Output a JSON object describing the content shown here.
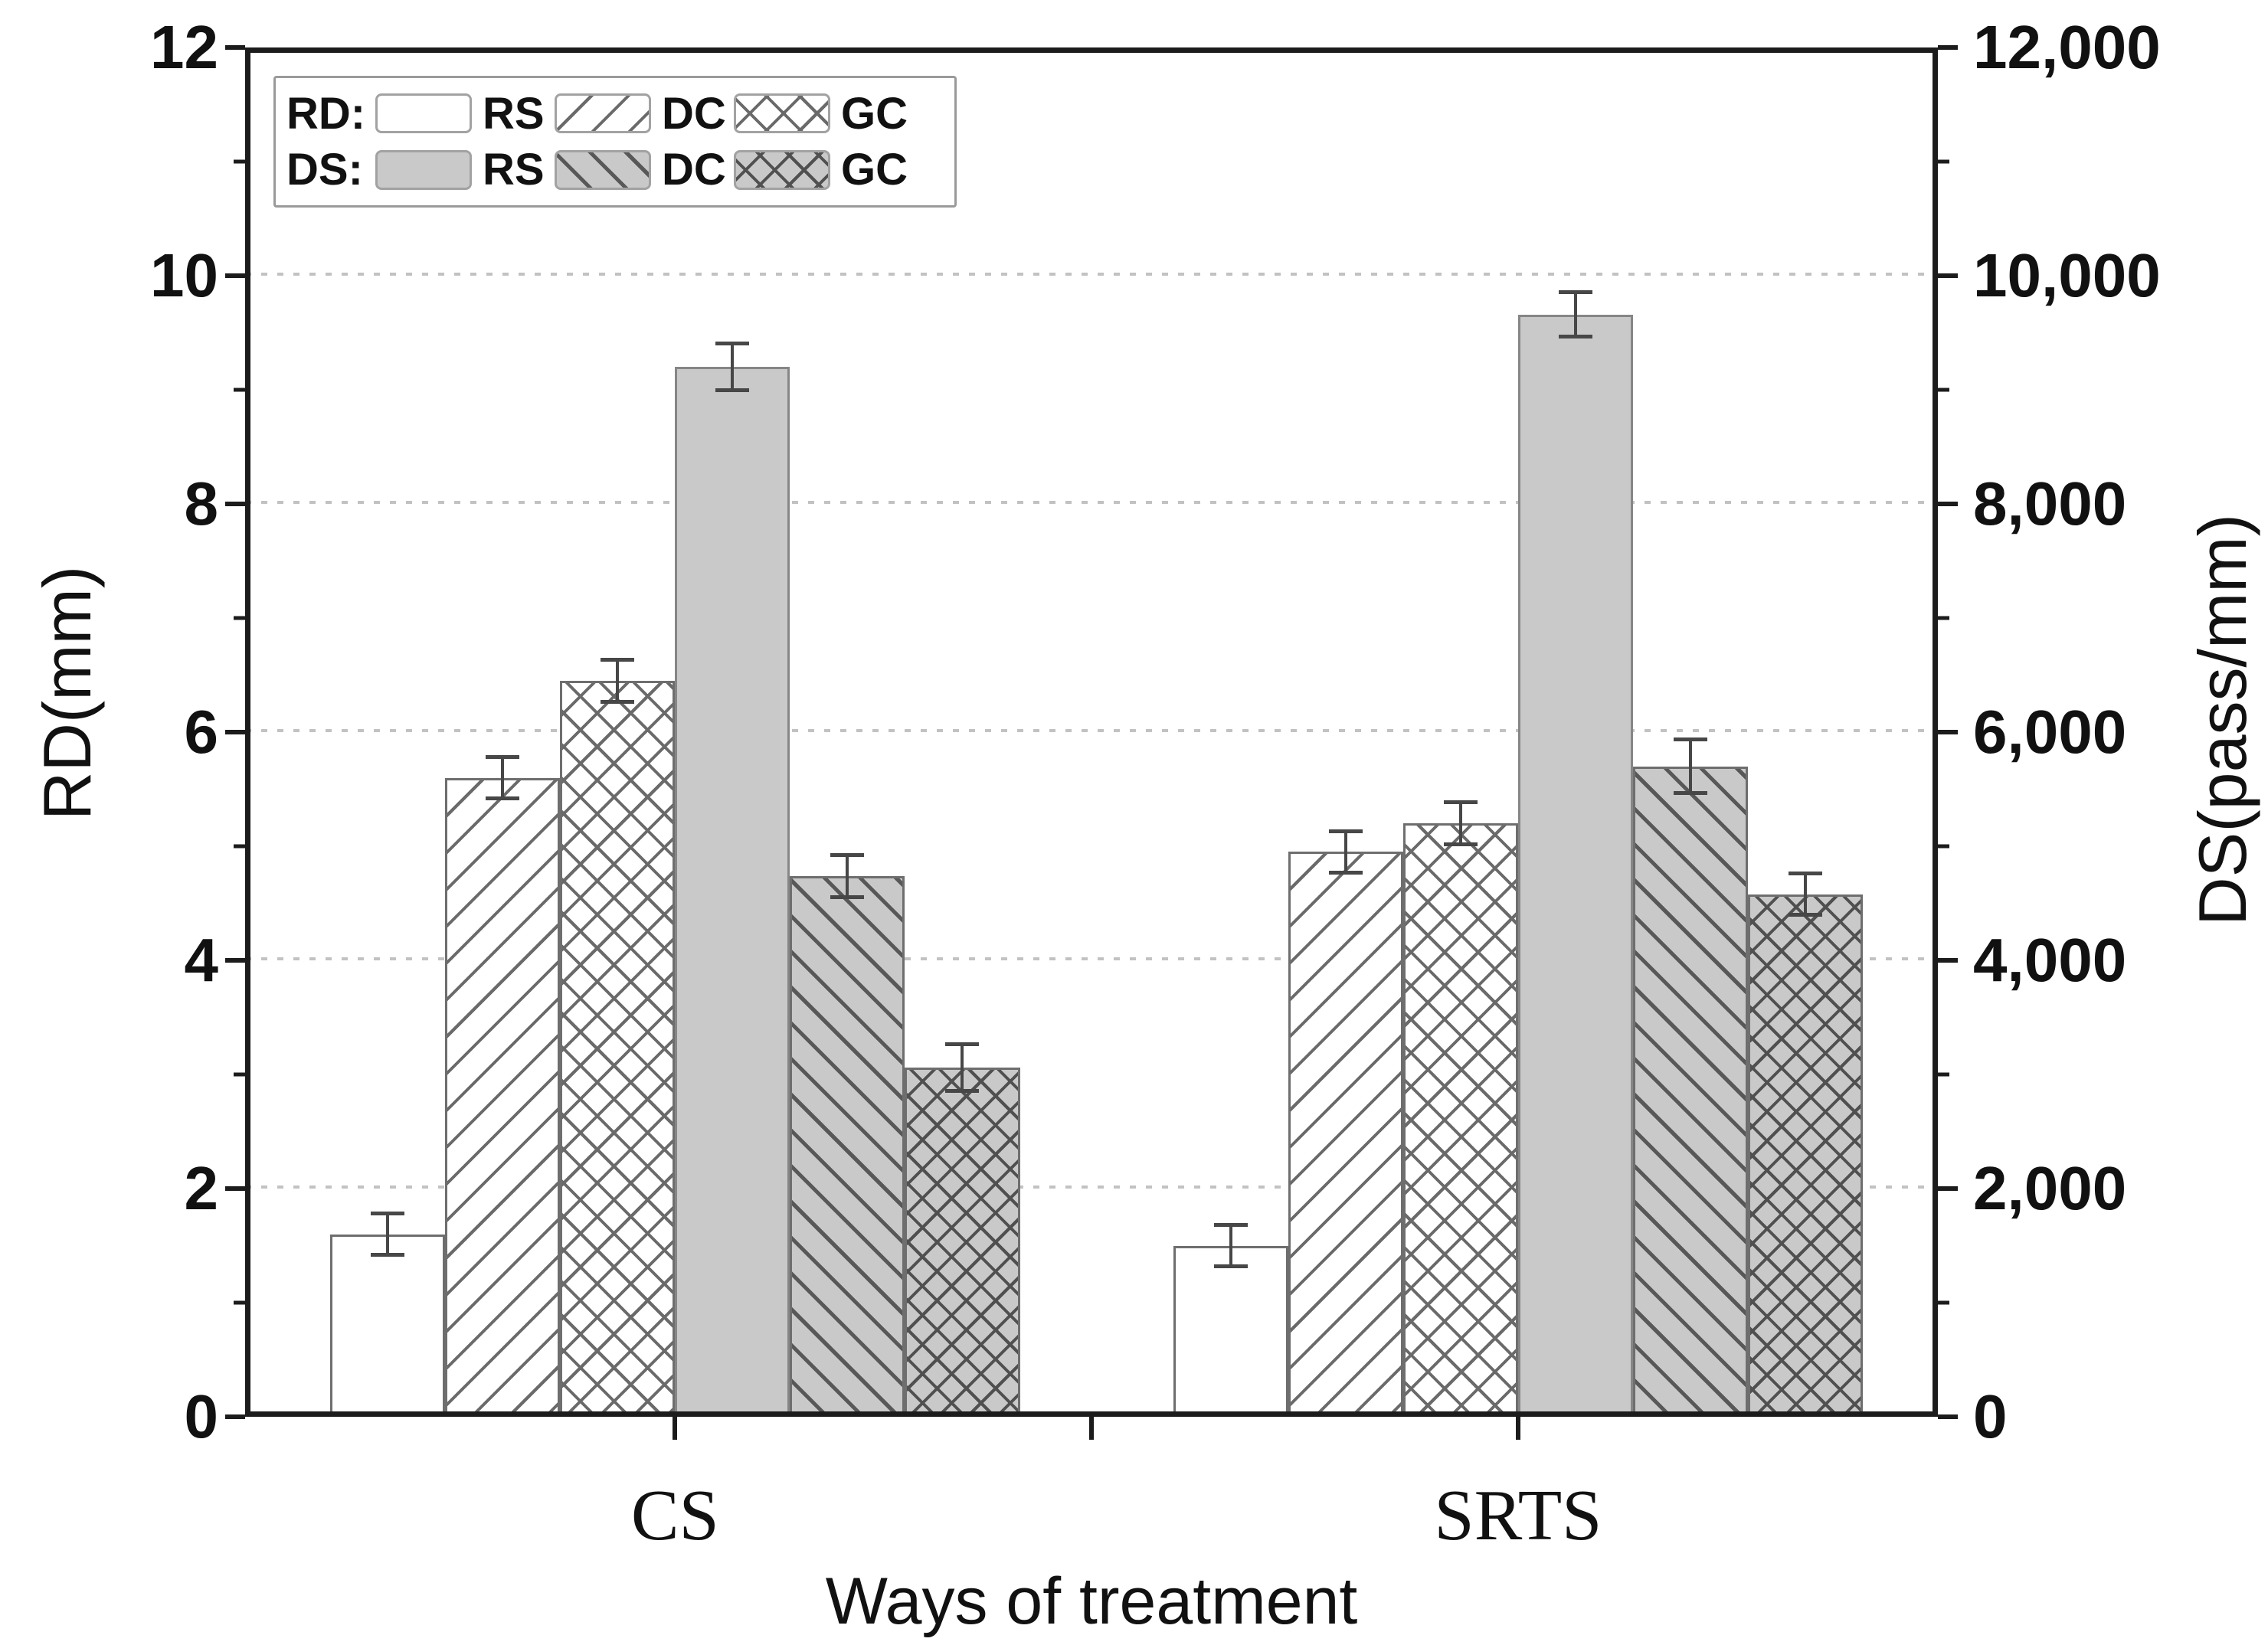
{
  "chart_data": {
    "type": "bar",
    "title": "",
    "xlabel": "Ways of treatment",
    "ylabel_left": "RD(mm)",
    "ylabel_right": "DS(pass/mm)",
    "categories": [
      "CS",
      "SRTS"
    ],
    "left_axis": {
      "min": 0,
      "max": 12,
      "tick_values": [
        0,
        2,
        4,
        6,
        8,
        10,
        12
      ],
      "tick_labels": [
        "0",
        "2",
        "4",
        "6",
        "8",
        "10",
        "12"
      ],
      "minor_tick_values": [
        1,
        3,
        5,
        7,
        9,
        11
      ]
    },
    "right_axis": {
      "min": 0,
      "max": 12000,
      "tick_values": [
        0,
        2000,
        4000,
        6000,
        8000,
        10000,
        12000
      ],
      "tick_labels": [
        "0",
        "2,000",
        "4,000",
        "6,000",
        "8,000",
        "10,000",
        "12,000"
      ],
      "minor_tick_values": [
        1000,
        3000,
        5000,
        7000,
        9000,
        11000
      ]
    },
    "gridline_values": [
      2,
      4,
      6,
      8,
      10
    ],
    "grid_on": true,
    "legend": {
      "position": "top-left",
      "rows": [
        {
          "prefix": "RD:",
          "items": [
            "RS",
            "DC",
            "GC"
          ],
          "styles": [
            "white-solid",
            "white-diagonal",
            "white-crosshatch"
          ]
        },
        {
          "prefix": "DS:",
          "items": [
            "RS",
            "DC",
            "GC"
          ],
          "styles": [
            "gray-solid",
            "gray-diagonal",
            "gray-crosshatch"
          ]
        }
      ]
    },
    "series": [
      {
        "key": "rd-rs",
        "group": "RD",
        "name": "RS",
        "axis": "left",
        "style": "white-solid",
        "values": [
          1.6,
          1.5
        ],
        "errors": [
          0.2,
          0.2
        ]
      },
      {
        "key": "rd-dc",
        "group": "RD",
        "name": "DC",
        "axis": "left",
        "style": "white-diagonal",
        "values": [
          5.6,
          4.95
        ],
        "errors": [
          0.2,
          0.2
        ]
      },
      {
        "key": "rd-gc",
        "group": "RD",
        "name": "GC",
        "axis": "left",
        "style": "white-crosshatch",
        "values": [
          6.45,
          5.2
        ],
        "errors": [
          0.2,
          0.2
        ]
      },
      {
        "key": "ds-rs",
        "group": "DS",
        "name": "RS",
        "axis": "right",
        "style": "gray-solid",
        "values": [
          9200,
          9660
        ],
        "errors": [
          220,
          210
        ]
      },
      {
        "key": "ds-dc",
        "group": "DS",
        "name": "DC",
        "axis": "right",
        "style": "gray-diagonal",
        "values": [
          4740,
          5700
        ],
        "errors": [
          200,
          250
        ]
      },
      {
        "key": "ds-gc",
        "group": "DS",
        "name": "GC",
        "axis": "right",
        "style": "gray-crosshatch",
        "values": [
          3060,
          4580
        ],
        "errors": [
          220,
          200
        ]
      }
    ],
    "colors": {
      "bar_gray": "#c9c9c9",
      "bar_border": "#6e6e6e",
      "gray_bar_border": "#868686",
      "hatch_line": "#6a6a6a",
      "grid": "#c2c2c2",
      "axis": "#1c1c1c",
      "error_bar": "#474747"
    }
  }
}
